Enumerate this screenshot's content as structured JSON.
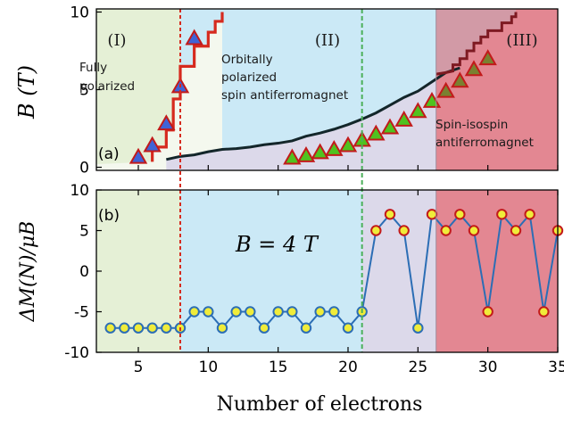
{
  "colors": {
    "region1": "#e5f0d6",
    "region2": "#cbe9f6",
    "region_mixed": "#dcd9ea",
    "region3": "#e38792",
    "region3_upper": "#d29aa6",
    "red_line": "#d62a1e",
    "dark_line": "#13262a",
    "dark_red_line": "#7e1a22",
    "blue_line": "#2c6eb5",
    "marker_yellow": "#f0ec3a",
    "triangle_blue": "#3f63d6",
    "triangle_green": "#50c21f",
    "triangle_olive": "#7a8030",
    "marker_edge": "#c21a1a",
    "dashed_red": "#d62a1e",
    "dashed_green": "#4cb05a"
  },
  "chart_data": [
    {
      "type": "line",
      "panel_label": "(a)",
      "ylabel": "B (T)",
      "xlim": [
        2,
        35
      ],
      "ylim": [
        -0.2,
        10.2
      ],
      "yticks": [
        0,
        5,
        10
      ],
      "region_labels": [
        "(I)",
        "(II)",
        "(III)"
      ],
      "annotations": [
        [
          "Fully",
          "polarized"
        ],
        [
          "Orbitally",
          "polarized",
          "spin antiferromagnet"
        ],
        [
          "Spin-isospin",
          "antiferromagnet"
        ]
      ],
      "lines": [
        {
          "id": "red",
          "points": [
            [
              6,
              0.35
            ],
            [
              6,
              1.3
            ],
            [
              7,
              1.3
            ],
            [
              7,
              2.4
            ],
            [
              7.5,
              2.4
            ],
            [
              7.5,
              4.4
            ],
            [
              8,
              4.4
            ],
            [
              8,
              6.5
            ],
            [
              9,
              6.5
            ],
            [
              9,
              7.8
            ],
            [
              10,
              7.8
            ],
            [
              10,
              8.7
            ],
            [
              10.5,
              8.7
            ],
            [
              10.5,
              9.4
            ],
            [
              11,
              9.4
            ],
            [
              11,
              10
            ]
          ]
        },
        {
          "id": "dark",
          "points": [
            [
              7,
              0.5
            ],
            [
              8,
              0.7
            ],
            [
              9,
              0.8
            ],
            [
              10,
              1.0
            ],
            [
              11,
              1.15
            ],
            [
              12,
              1.2
            ],
            [
              13,
              1.3
            ],
            [
              14,
              1.45
            ],
            [
              15,
              1.55
            ],
            [
              16,
              1.7
            ],
            [
              17,
              2.0
            ],
            [
              18,
              2.2
            ],
            [
              19,
              2.45
            ],
            [
              20,
              2.75
            ],
            [
              21,
              3.1
            ],
            [
              22,
              3.5
            ],
            [
              23,
              4.0
            ],
            [
              24,
              4.5
            ],
            [
              25,
              4.9
            ],
            [
              26,
              5.5
            ],
            [
              27,
              6.1
            ],
            [
              28,
              6.4
            ]
          ]
        },
        {
          "id": "darkred",
          "points": [
            [
              26.3,
              6.0
            ],
            [
              27,
              6.1
            ],
            [
              27.5,
              6.2
            ],
            [
              27.5,
              6.6
            ],
            [
              28,
              6.6
            ],
            [
              28,
              7.0
            ],
            [
              28.5,
              7.0
            ],
            [
              28.5,
              7.5
            ],
            [
              29,
              7.5
            ],
            [
              29,
              8.0
            ],
            [
              29.5,
              8.0
            ],
            [
              29.5,
              8.4
            ],
            [
              30,
              8.4
            ],
            [
              30,
              8.8
            ],
            [
              31,
              8.8
            ],
            [
              31,
              9.3
            ],
            [
              31.7,
              9.3
            ],
            [
              31.7,
              9.7
            ],
            [
              32,
              9.7
            ],
            [
              32,
              10
            ]
          ]
        }
      ],
      "series": [
        {
          "name": "blue",
          "x": [
            5,
            6,
            7,
            8,
            9
          ],
          "y": [
            0.65,
            1.4,
            2.8,
            5.2,
            8.3
          ]
        },
        {
          "name": "green",
          "x": [
            16,
            17,
            18,
            19,
            20,
            21,
            22,
            23,
            24,
            25,
            26
          ],
          "y": [
            0.6,
            0.75,
            0.95,
            1.15,
            1.4,
            1.75,
            2.15,
            2.55,
            3.05,
            3.6,
            4.25
          ]
        },
        {
          "name": "olive",
          "x": [
            27,
            28,
            29,
            30
          ],
          "y": [
            4.9,
            5.55,
            6.3,
            7.0
          ]
        }
      ]
    },
    {
      "type": "line",
      "panel_label": "(b)",
      "ylabel": "ΔM(N)/μB",
      "annotation": "B = 4 T",
      "xlabel": "Number of electrons",
      "xlim": [
        2,
        35
      ],
      "ylim": [
        -10,
        10
      ],
      "xticks": [
        5,
        10,
        15,
        20,
        25,
        30,
        35
      ],
      "ytick_labels": [
        "10",
        "5",
        "0",
        "-5",
        "-10"
      ],
      "x": [
        3,
        4,
        5,
        6,
        7,
        8,
        9,
        10,
        11,
        12,
        13,
        14,
        15,
        16,
        17,
        18,
        19,
        20,
        21,
        22,
        23,
        24,
        25,
        26,
        27,
        28,
        29,
        30,
        31,
        32,
        33,
        34,
        35
      ],
      "y": [
        -7,
        -7,
        -7,
        -7,
        -7,
        -7,
        -5,
        -5,
        -7,
        -5,
        -5,
        -7,
        -5,
        -5,
        -7,
        -5,
        -5,
        -7,
        -5,
        5,
        7,
        5,
        -7,
        7,
        5,
        7,
        5,
        -5,
        7,
        5,
        7,
        -5,
        5
      ]
    }
  ]
}
